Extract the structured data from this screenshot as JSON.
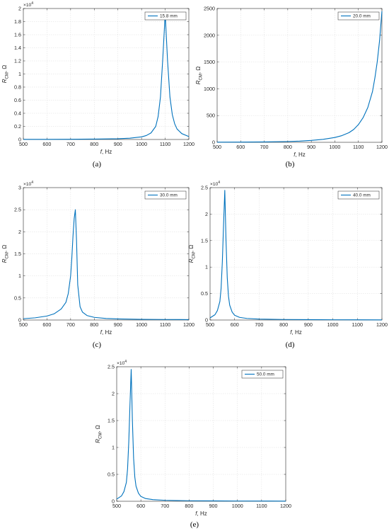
{
  "chart_data": [
    {
      "type": "line",
      "panel_label": "(a)",
      "xlabel_var": "f",
      "xlabel_unit": ", Hz",
      "ylabel_main": "R",
      "ylabel_sub": "CM",
      "ylabel_unit": ", Ω",
      "exponent_base": "×10",
      "exponent_power": "4",
      "xlim": [
        500,
        1200
      ],
      "ylim": [
        0,
        20000
      ],
      "xticks": [
        500,
        600,
        700,
        800,
        900,
        1000,
        1100,
        1200
      ],
      "xtick_labels": [
        "500",
        "600",
        "700",
        "800",
        "900",
        "1000",
        "1100",
        "1200"
      ],
      "yticks": [
        0,
        2000,
        4000,
        6000,
        8000,
        10000,
        12000,
        14000,
        16000,
        18000,
        20000
      ],
      "ytick_labels": [
        "0",
        "0.2",
        "0.4",
        "0.6",
        "0.8",
        "1",
        "1.2",
        "1.4",
        "1.6",
        "1.8",
        "2"
      ],
      "grid": true,
      "legend_position": "top-right",
      "series": [
        {
          "name": "15.8 mm",
          "color": "#0072BD",
          "x": [
            500,
            600,
            700,
            800,
            900,
            950,
            1000,
            1020,
            1040,
            1060,
            1070,
            1080,
            1090,
            1100,
            1110,
            1120,
            1130,
            1140,
            1150,
            1170,
            1200
          ],
          "y": [
            20,
            25,
            35,
            60,
            120,
            200,
            400,
            600,
            1000,
            2000,
            3500,
            6500,
            12500,
            19200,
            12000,
            6500,
            3800,
            2400,
            1600,
            900,
            450
          ]
        }
      ]
    },
    {
      "type": "line",
      "panel_label": "(b)",
      "xlabel_var": "f",
      "xlabel_unit": ", Hz",
      "ylabel_main": "R",
      "ylabel_sub": "CM",
      "ylabel_unit": ", Ω",
      "xlim": [
        500,
        1200
      ],
      "ylim": [
        0,
        2500
      ],
      "xticks": [
        500,
        600,
        700,
        800,
        900,
        1000,
        1100,
        1200
      ],
      "xtick_labels": [
        "500",
        "600",
        "700",
        "800",
        "900",
        "1000",
        "1100",
        "1200"
      ],
      "yticks": [
        0,
        500,
        1000,
        1500,
        2000,
        2500
      ],
      "ytick_labels": [
        "0",
        "500",
        "1000",
        "1500",
        "2000",
        "2500"
      ],
      "grid": true,
      "legend_position": "top-right",
      "series": [
        {
          "name": "20.0 mm",
          "color": "#0072BD",
          "x": [
            500,
            600,
            700,
            800,
            850,
            900,
            950,
            1000,
            1030,
            1060,
            1080,
            1100,
            1120,
            1140,
            1160,
            1170,
            1180,
            1190,
            1200
          ],
          "y": [
            2,
            4,
            8,
            15,
            22,
            35,
            55,
            90,
            125,
            180,
            240,
            330,
            460,
            650,
            950,
            1200,
            1500,
            1900,
            2450
          ]
        }
      ]
    },
    {
      "type": "line",
      "panel_label": "(c)",
      "xlabel_var": "f",
      "xlabel_unit": ", Hz",
      "ylabel_main": "R",
      "ylabel_sub": "CM",
      "ylabel_unit": ", Ω",
      "exponent_base": "×10",
      "exponent_power": "4",
      "xlim": [
        500,
        1200
      ],
      "ylim": [
        0,
        30000
      ],
      "xticks": [
        500,
        600,
        700,
        800,
        900,
        1000,
        1100,
        1200
      ],
      "xtick_labels": [
        "500",
        "600",
        "700",
        "800",
        "900",
        "1000",
        "1100",
        "1200"
      ],
      "yticks": [
        0,
        5000,
        10000,
        15000,
        20000,
        25000,
        30000
      ],
      "ytick_labels": [
        "0",
        "0.5",
        "1",
        "1.5",
        "2",
        "2.5",
        "3"
      ],
      "grid": true,
      "legend_position": "top-right",
      "series": [
        {
          "name": "30.0 mm",
          "color": "#0072BD",
          "x": [
            500,
            550,
            600,
            630,
            660,
            680,
            690,
            700,
            705,
            710,
            715,
            720,
            725,
            730,
            740,
            750,
            770,
            800,
            850,
            900,
            1000,
            1100,
            1200
          ],
          "y": [
            300,
            500,
            900,
            1400,
            2500,
            4000,
            6000,
            10000,
            14000,
            19000,
            23000,
            25000,
            18000,
            8000,
            3000,
            1800,
            1000,
            600,
            350,
            250,
            150,
            120,
            100
          ]
        }
      ]
    },
    {
      "type": "line",
      "panel_label": "(d)",
      "xlabel_var": "f",
      "xlabel_unit": ", Hz",
      "ylabel_main": "R",
      "ylabel_sub": "CM",
      "ylabel_unit": ", Ω",
      "exponent_base": "×10",
      "exponent_power": "4",
      "xlim": [
        500,
        1200
      ],
      "ylim": [
        0,
        25000
      ],
      "xticks": [
        500,
        600,
        700,
        800,
        900,
        1000,
        1100,
        1200
      ],
      "xtick_labels": [
        "500",
        "600",
        "700",
        "800",
        "900",
        "1000",
        "1100",
        "1200"
      ],
      "yticks": [
        0,
        5000,
        10000,
        15000,
        20000,
        25000
      ],
      "ytick_labels": [
        "0",
        "0.5",
        "1",
        "1.5",
        "2",
        "2.5"
      ],
      "grid": true,
      "legend_position": "top-right",
      "series": [
        {
          "name": "40.0 mm",
          "color": "#0072BD",
          "x": [
            500,
            520,
            530,
            540,
            545,
            550,
            555,
            560,
            565,
            570,
            575,
            580,
            590,
            600,
            620,
            650,
            700,
            800,
            900,
            1000,
            1200
          ],
          "y": [
            400,
            1000,
            1800,
            3500,
            6000,
            11000,
            18000,
            24500,
            15000,
            8000,
            4500,
            2800,
            1500,
            900,
            500,
            300,
            180,
            100,
            70,
            50,
            30
          ]
        }
      ]
    },
    {
      "type": "line",
      "panel_label": "(e)",
      "xlabel_var": "f",
      "xlabel_unit": ", Hz",
      "ylabel_main": "R",
      "ylabel_sub": "CM",
      "ylabel_unit": ", Ω",
      "exponent_base": "×10",
      "exponent_power": "4",
      "xlim": [
        500,
        1200
      ],
      "ylim": [
        0,
        25000
      ],
      "xticks": [
        500,
        600,
        700,
        800,
        900,
        1000,
        1100,
        1200
      ],
      "xtick_labels": [
        "500",
        "600",
        "700",
        "800",
        "900",
        "1000",
        "1100",
        "1200"
      ],
      "yticks": [
        0,
        5000,
        10000,
        15000,
        20000,
        25000
      ],
      "ytick_labels": [
        "0",
        "0.5",
        "1",
        "1.5",
        "2",
        "2.5"
      ],
      "grid": true,
      "legend_position": "top-right",
      "series": [
        {
          "name": "50.0 mm",
          "color": "#0072BD",
          "x": [
            500,
            520,
            530,
            540,
            545,
            550,
            555,
            560,
            565,
            570,
            575,
            580,
            590,
            600,
            620,
            650,
            700,
            800,
            900,
            1000,
            1200
          ],
          "y": [
            400,
            1000,
            1800,
            3500,
            6000,
            11000,
            18000,
            24500,
            15000,
            8000,
            4500,
            2800,
            1500,
            900,
            500,
            300,
            180,
            100,
            70,
            50,
            30
          ]
        }
      ]
    }
  ]
}
